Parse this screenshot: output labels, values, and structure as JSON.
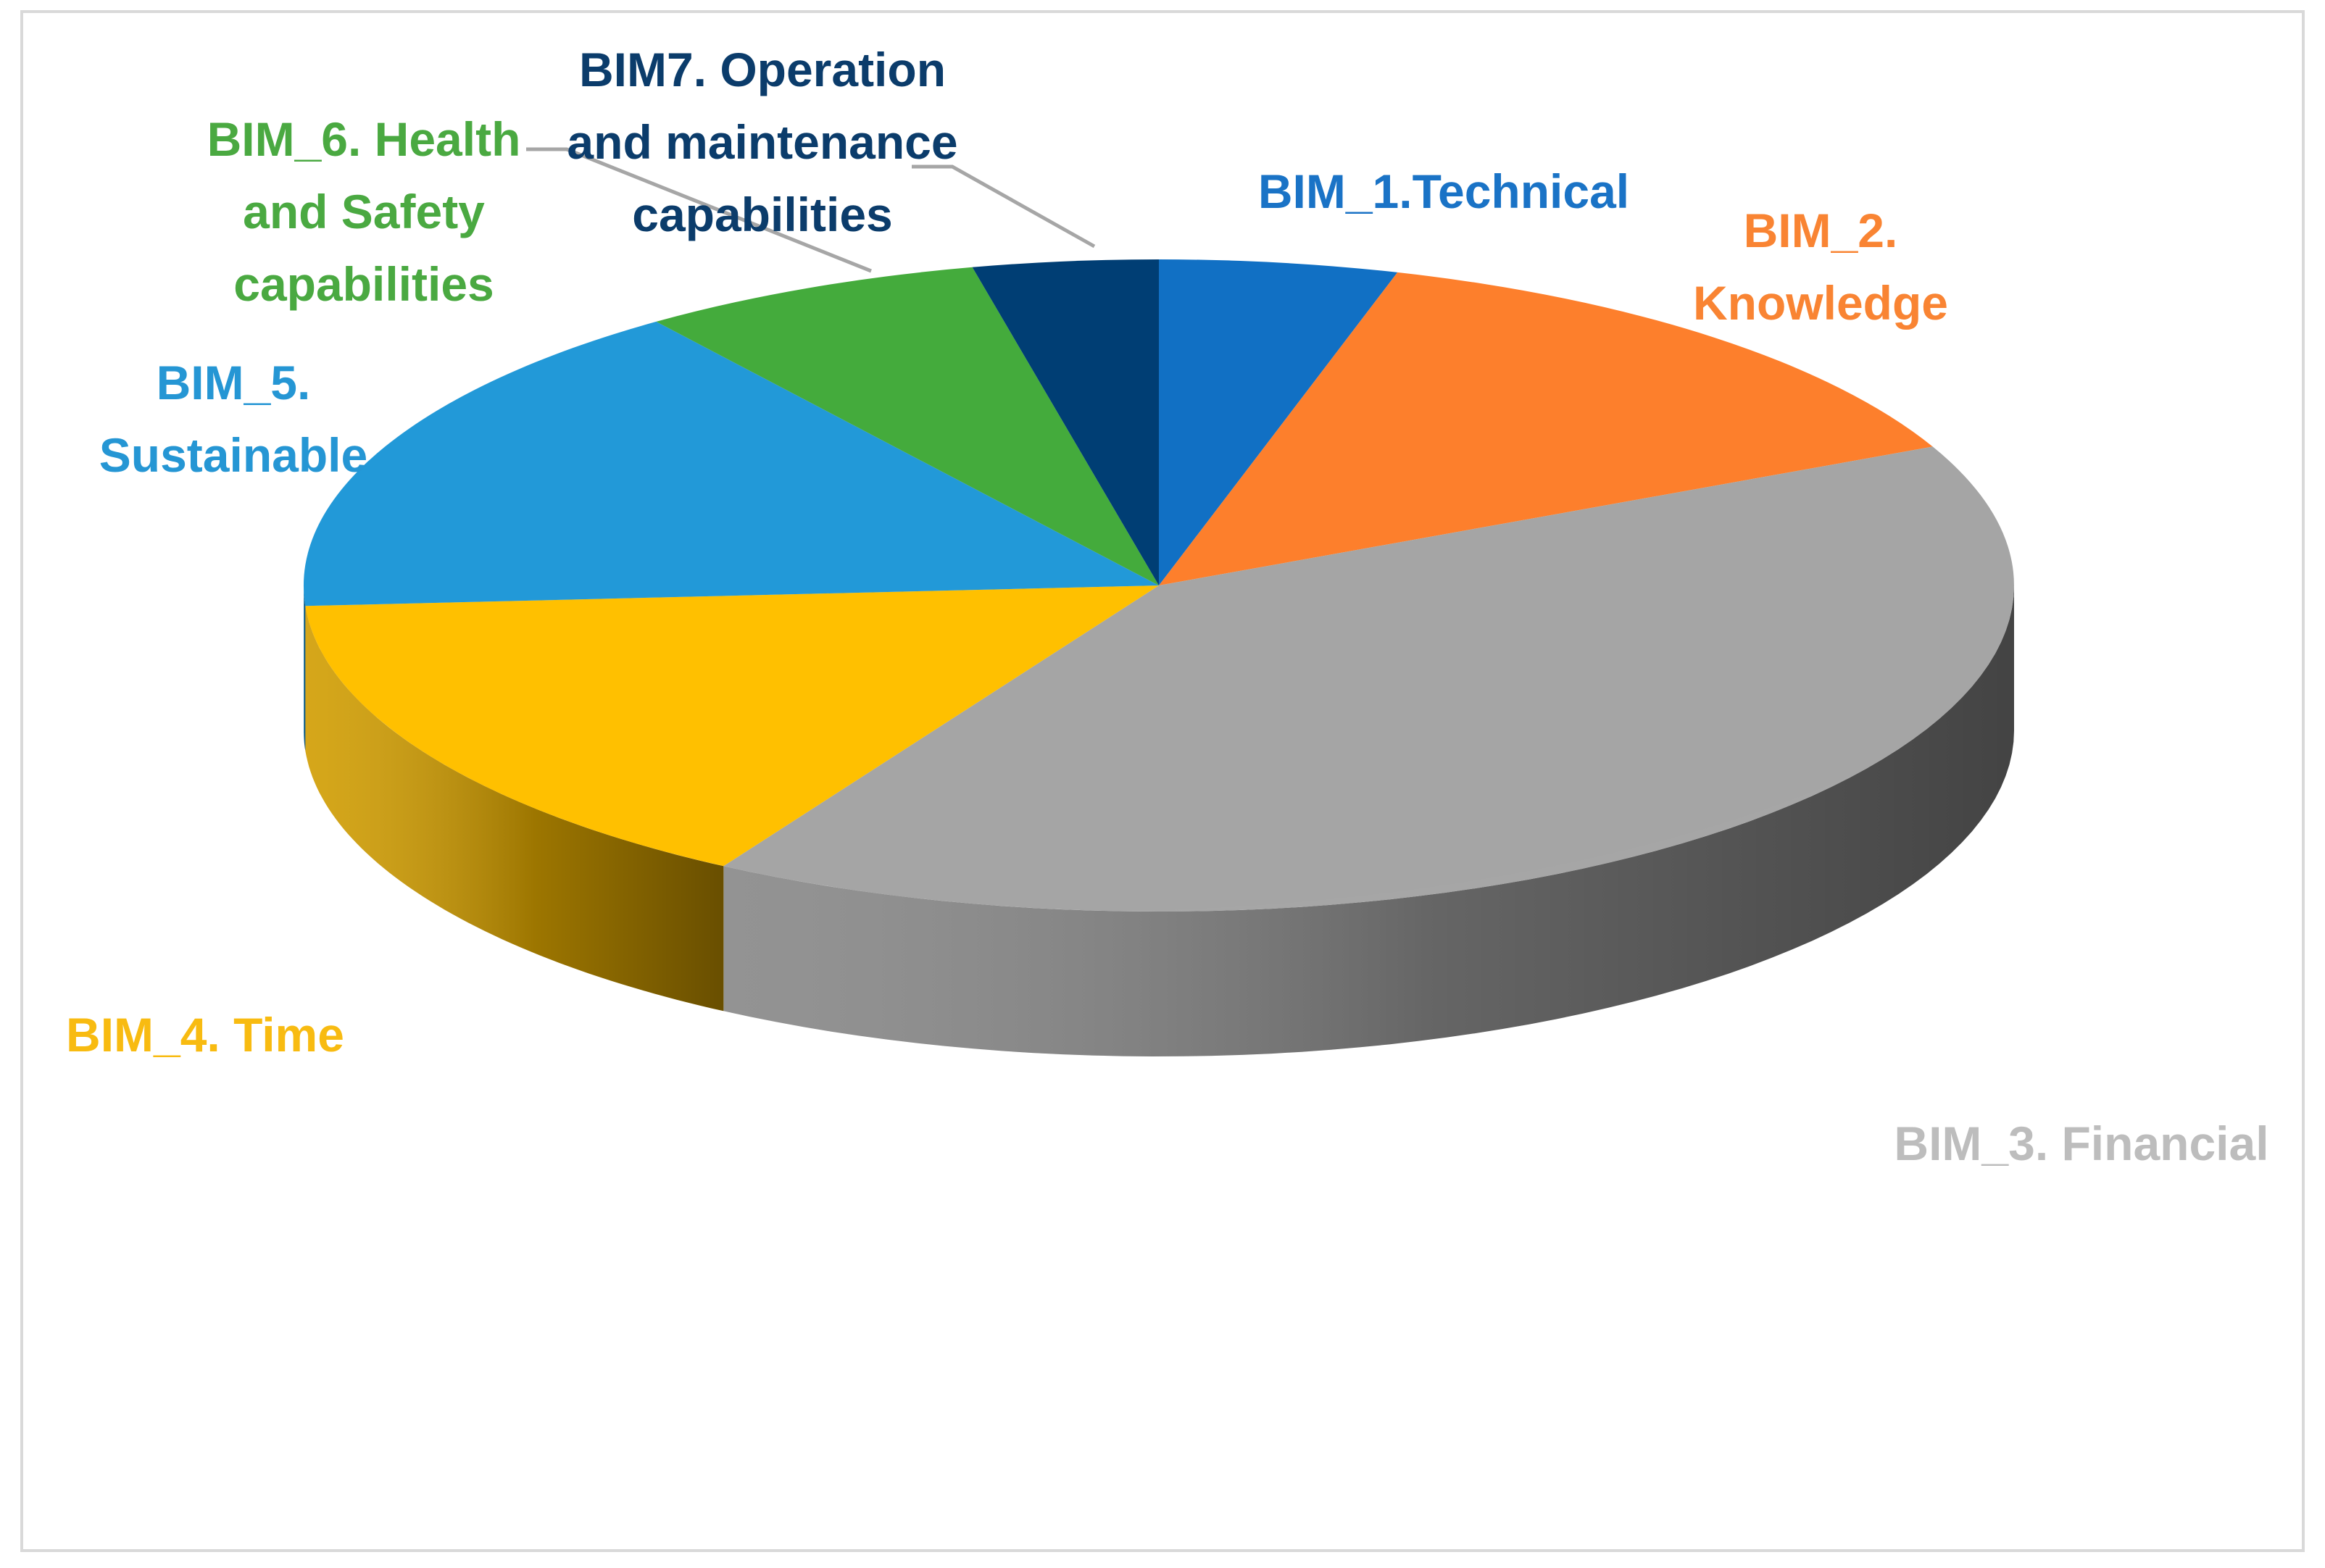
{
  "chart_data": {
    "type": "pie",
    "title": "",
    "legend": "none",
    "slices": [
      {
        "label": "BIM_1.Technical",
        "value": 4.5,
        "color": "#1170c4"
      },
      {
        "label": "BIM_2. Knowledge",
        "value": 13.5,
        "color": "#fd7f2c"
      },
      {
        "label": "BIM_3. Financial",
        "value": 40.5,
        "color": "#a5a5a5"
      },
      {
        "label": "BIM_4. Time",
        "value": 15.5,
        "color": "#ffc000"
      },
      {
        "label": "BIM_5. Sustainable",
        "value": 16,
        "color": "#2299d8"
      },
      {
        "label": "BIM_6. Health and  Safety capabilities",
        "value": 6.5,
        "color": "#44ab3c"
      },
      {
        "label": "BIM7. Operation and maintenance capabilities",
        "value": 3.5,
        "color": "#003e74"
      }
    ],
    "label_colors": [
      "#1a73c6",
      "#f98433",
      "#bdbdbd",
      "#f8bb11",
      "#2596d4",
      "#4aa941",
      "#0b3c6b"
    ]
  }
}
